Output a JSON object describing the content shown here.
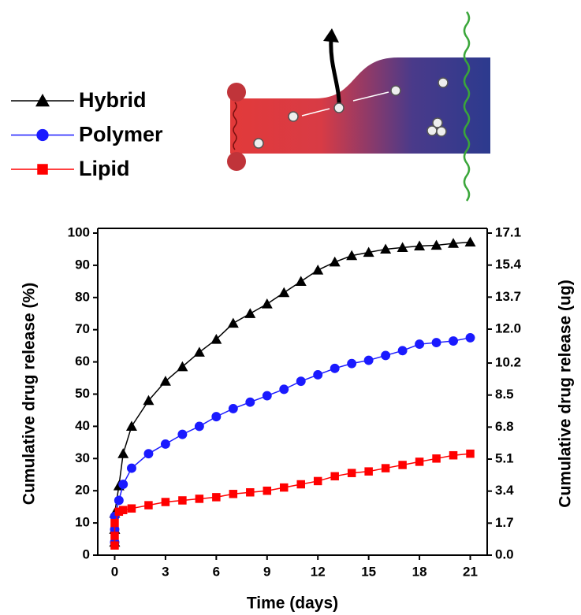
{
  "chart_data": {
    "type": "line",
    "x_label": "Time (days)",
    "y_label": "Cumulative drug release (%)",
    "y2_label": "Cumulative drug release (ug)",
    "xlim": [
      -1,
      22
    ],
    "xticks": [
      0,
      3,
      6,
      9,
      12,
      15,
      18,
      21
    ],
    "ylim": [
      0,
      100
    ],
    "yticks": [
      0,
      10,
      20,
      30,
      40,
      50,
      60,
      70,
      80,
      90,
      100
    ],
    "y2lim": [
      0,
      17.1
    ],
    "y2ticks": [
      {
        "value": 0,
        "label": "0.0"
      },
      1.7,
      3.4,
      5.1,
      6.8,
      8.5,
      10.2,
      {
        "value": 12,
        "label": "12.0"
      },
      13.7,
      15.4,
      17.1
    ],
    "x": [
      0,
      0,
      0,
      0.25,
      0.5,
      1,
      2,
      3,
      4,
      5,
      6,
      7,
      8,
      9,
      10,
      11,
      12,
      13,
      14,
      15,
      16,
      17,
      18,
      19,
      20,
      21
    ],
    "series": [
      {
        "name": "Hybrid",
        "color": "#000000",
        "marker": "triangle",
        "values": [
          4,
          8,
          13,
          21.5,
          31.5,
          40,
          48,
          54,
          58.5,
          63,
          67,
          72,
          75,
          78,
          81.5,
          85,
          88.5,
          91,
          93,
          94,
          95,
          95.5,
          96,
          96.2,
          96.8,
          97.2
        ]
      },
      {
        "name": "Polymer",
        "color": "#1a1aff",
        "marker": "circle",
        "values": [
          4,
          8,
          12,
          17,
          22,
          27,
          31.5,
          34.5,
          37.5,
          40,
          43,
          45.5,
          47.5,
          49.5,
          51.5,
          54,
          56,
          58,
          59.5,
          60.5,
          62,
          63.5,
          65.5,
          66,
          66.5,
          67.5
        ]
      },
      {
        "name": "Lipid",
        "color": "#ff0000",
        "marker": "square",
        "values": [
          3,
          6,
          10,
          13.5,
          14,
          14.5,
          15.5,
          16.5,
          17,
          17.5,
          18,
          19,
          19.5,
          20,
          21,
          22,
          23,
          24.5,
          25.5,
          26,
          27,
          28,
          29,
          30,
          31,
          31.5
        ]
      }
    ]
  }
}
